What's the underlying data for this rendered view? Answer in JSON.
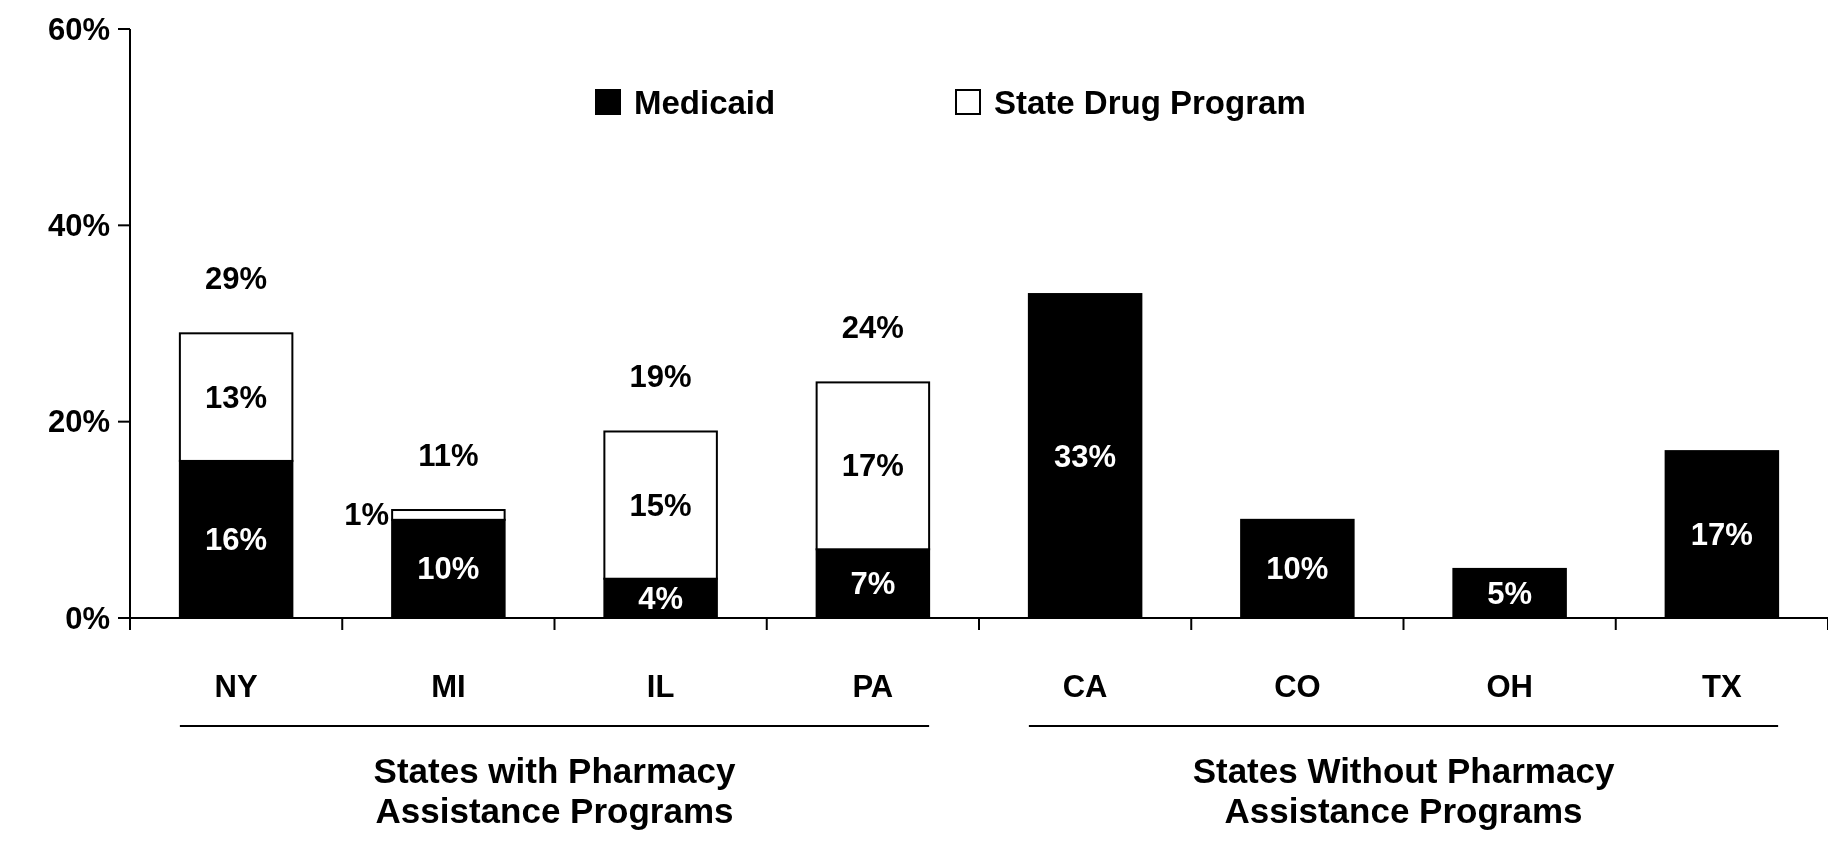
{
  "chart_data": {
    "type": "bar",
    "stacked": true,
    "categories": [
      "NY",
      "MI",
      "IL",
      "PA",
      "CA",
      "CO",
      "OH",
      "TX"
    ],
    "series": [
      {
        "name": "Medicaid",
        "color": "#000000",
        "values": [
          16,
          10,
          4,
          7,
          33,
          10,
          5,
          17
        ],
        "value_labels": [
          "16%",
          "10%",
          "4%",
          "7%",
          "33%",
          "10%",
          "5%",
          "17%"
        ]
      },
      {
        "name": "State Drug Program",
        "color": "#ffffff",
        "values": [
          13,
          1,
          15,
          17,
          null,
          null,
          null,
          null
        ],
        "value_labels": [
          "13%",
          "1%",
          "15%",
          "17%",
          null,
          null,
          null,
          null
        ]
      }
    ],
    "totals": [
      "29%",
      "11%",
      "19%",
      "24%",
      null,
      null,
      null,
      null
    ],
    "ylim": [
      0,
      60
    ],
    "yticks": [
      {
        "value": 0,
        "label": "0%"
      },
      {
        "value": 20,
        "label": "20%"
      },
      {
        "value": 40,
        "label": "40%"
      },
      {
        "value": 60,
        "label": "60%"
      }
    ],
    "legend": "top",
    "grid": false,
    "annotations": [
      "States with Pharmacy Assistance Programs",
      "States Without Pharmacy Assistance Programs"
    ]
  }
}
